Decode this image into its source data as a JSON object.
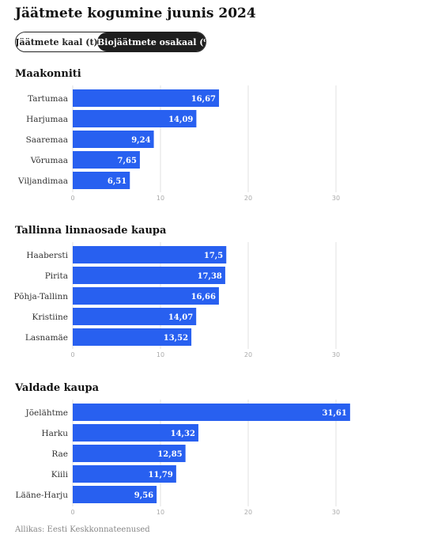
{
  "title": "Jäätmete kogumine juunis 2024",
  "toggle": {
    "option1": "Jäätmete kaal (t)",
    "option2": "Biojäätmete osakaal (%)"
  },
  "chart_data": [
    {
      "type": "bar",
      "orientation": "horizontal",
      "title": "Maakonniti",
      "categories": [
        "Tartumaa",
        "Harjumaa",
        "Saaremaa",
        "Võrumaa",
        "Viljandimaa"
      ],
      "values": [
        16.67,
        14.09,
        9.24,
        7.65,
        6.51
      ],
      "value_labels": [
        "16,67",
        "14,09",
        "9,24",
        "7,65",
        "6,51"
      ],
      "xlim": [
        0,
        35
      ],
      "xticks": [
        "0",
        "10",
        "20",
        "30"
      ],
      "grid": true,
      "bar_color": "#2860f0"
    },
    {
      "type": "bar",
      "orientation": "horizontal",
      "title": "Tallinna linnaosade kaupa",
      "categories": [
        "Haabersti",
        "Pirita",
        "Põhja-Tallinn",
        "Kristiine",
        "Lasnamäe"
      ],
      "values": [
        17.5,
        17.38,
        16.66,
        14.07,
        13.52
      ],
      "value_labels": [
        "17,5",
        "17,38",
        "16,66",
        "14,07",
        "13,52"
      ],
      "xlim": [
        0,
        35
      ],
      "xticks": [
        "0",
        "10",
        "20",
        "30"
      ],
      "grid": true,
      "bar_color": "#2860f0"
    },
    {
      "type": "bar",
      "orientation": "horizontal",
      "title": "Valdade kaupa",
      "categories": [
        "Jõelähtme",
        "Harku",
        "Rae",
        "Kiili",
        "Lääne-Harju"
      ],
      "values": [
        31.61,
        14.32,
        12.85,
        11.79,
        9.56
      ],
      "value_labels": [
        "31,61",
        "14,32",
        "12,85",
        "11,79",
        "9,56"
      ],
      "xlim": [
        0,
        35
      ],
      "xticks": [
        "0",
        "10",
        "20",
        "30"
      ],
      "grid": true,
      "bar_color": "#2860f0"
    }
  ],
  "source": "Allikas: Eesti Keskkonnateenused"
}
